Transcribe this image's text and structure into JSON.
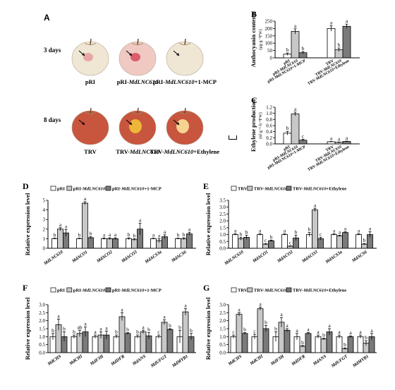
{
  "panel_A": {
    "letter": "A",
    "row1_label": "3 days",
    "row2_label": "8 days",
    "apples_row1": [
      {
        "label_main": "pRI",
        "label_gene": "",
        "label_suffix": ""
      },
      {
        "label_main": "pRI-",
        "label_gene": "MdLNC610",
        "label_suffix": ""
      },
      {
        "label_main": "pRI-",
        "label_gene": "MdLNC610",
        "label_suffix": "+1-MCP"
      }
    ],
    "apples_row2": [
      {
        "label_main": "TRV",
        "label_gene": "",
        "label_suffix": ""
      },
      {
        "label_main": "TRV-",
        "label_gene": "MdLNC610",
        "label_suffix": ""
      },
      {
        "label_main": "TRV-",
        "label_gene": "MdLNC610",
        "label_suffix": "+Ethylene"
      }
    ]
  },
  "colors": {
    "white_bar": "#ffffff",
    "light_gray": "#c8c8c8",
    "dark_gray": "#7a7a7a",
    "skin_red": "#c8553d",
    "skin_pale": "#efe6d4"
  },
  "chart_data": [
    {
      "id": "B",
      "letter": "B",
      "type": "bar",
      "ylabel": "Anthocyanin contents",
      "yunit": "(μg·g⁻¹FW)",
      "yticks": [
        "0",
        "50",
        "100",
        "150",
        "200",
        "250"
      ],
      "ylim": [
        0,
        250
      ],
      "groups": [
        {
          "xlabels": [
            "pRI",
            "pRI-MdLNC610",
            "pRI-MdLNC610+1-MCP"
          ],
          "values": [
            25,
            180,
            35
          ],
          "errors": [
            8,
            18,
            8
          ],
          "letters": [
            "b",
            "a",
            "b"
          ]
        },
        {
          "xlabels": [
            "TRV",
            "TRV-MdLNC610",
            "TRV-MdLNC610+Ethylene"
          ],
          "values": [
            200,
            55,
            215
          ],
          "errors": [
            18,
            12,
            15
          ],
          "letters": [
            "a",
            "b",
            "a"
          ]
        }
      ]
    },
    {
      "id": "C",
      "letter": "C",
      "type": "bar",
      "ylabel": "Ethylene production",
      "yunit": "(nl·g⁻¹·h⁻¹FW)",
      "yticks": [
        "0.0",
        "0.2",
        "0.4",
        "0.6",
        "0.8",
        "1.0",
        "1.2"
      ],
      "ylim": [
        0,
        1.2
      ],
      "groups": [
        {
          "xlabels": [
            "pRI",
            "pRI-MdLNC610",
            "pRI-MdLNC610+1-MCP"
          ],
          "values": [
            0.35,
            0.98,
            0.12
          ],
          "errors": [
            0.06,
            0.06,
            0.03
          ],
          "letters": [
            "b",
            "a",
            "c"
          ]
        },
        {
          "xlabels": [
            "TRV",
            "TRV-MdLNC610",
            "TRV-MdLNC610+Ethylene"
          ],
          "values": [
            0.07,
            0.05,
            0.08
          ],
          "errors": [
            0.01,
            0.01,
            0.01
          ],
          "letters": [
            "a",
            "a",
            "a"
          ]
        }
      ]
    },
    {
      "id": "D",
      "letter": "D",
      "type": "bar",
      "ylabel": "Relative expression level",
      "legend": [
        "pRI",
        "pRI-MdLNC610",
        "pRI-MdLNC610+1-MCP"
      ],
      "yticks": [
        "0",
        "1",
        "2",
        "3",
        "4",
        "5"
      ],
      "ylim": [
        0,
        5
      ],
      "categories": [
        "MdLNC610",
        "MdACO1",
        "MdACO2",
        "MdACO3",
        "MdACS3a",
        "MdACS6"
      ],
      "series": [
        {
          "name": "pRI",
          "values": [
            1.0,
            1.0,
            1.0,
            1.0,
            1.0,
            1.0
          ],
          "errors": [
            0.05,
            0.05,
            0.08,
            0.1,
            0.05,
            0.05
          ],
          "letters": [
            "b",
            "b",
            "a",
            "b",
            "a",
            "b"
          ]
        },
        {
          "name": "pRI-MdLNC610",
          "values": [
            2.0,
            4.7,
            1.0,
            0.9,
            0.8,
            1.0
          ],
          "errors": [
            0.15,
            0.15,
            0.1,
            0.1,
            0.2,
            0.1
          ],
          "letters": [
            "a",
            "a",
            "a",
            "b",
            "a",
            "b"
          ]
        },
        {
          "name": "pRI-MdLNC610+1-MCP",
          "values": [
            1.6,
            1.1,
            1.0,
            2.0,
            1.2,
            1.5
          ],
          "errors": [
            0.35,
            0.1,
            0.1,
            0.6,
            0.2,
            0.15
          ],
          "letters": [
            "a",
            "b",
            "a",
            "a",
            "a",
            "a"
          ]
        }
      ]
    },
    {
      "id": "E",
      "letter": "E",
      "type": "bar",
      "ylabel": "Relative expression level",
      "legend": [
        "TRV",
        "TRV-MdLNC610",
        "TRV-MdLNC610+Ethylene"
      ],
      "yticks": [
        "0.0",
        "0.5",
        "1.0",
        "1.5",
        "2.0",
        "2.5",
        "3.0",
        "3.5"
      ],
      "ylim": [
        0,
        3.5
      ],
      "categories": [
        "MdLNC610",
        "MdACO1",
        "MdACO2",
        "MdACO3",
        "MdACS3a",
        "MdACS6"
      ],
      "series": [
        {
          "name": "TRV",
          "values": [
            1.0,
            1.0,
            1.0,
            1.0,
            1.0,
            1.0
          ],
          "errors": [
            0.05,
            0.05,
            0.05,
            0.15,
            0.05,
            0.05
          ],
          "letters": [
            "a",
            "a",
            "a",
            "b",
            "a",
            "a"
          ]
        },
        {
          "name": "TRV-MdLNC610",
          "values": [
            0.7,
            0.3,
            0.15,
            2.8,
            0.9,
            0.3
          ],
          "errors": [
            0.1,
            0.05,
            0.03,
            0.12,
            0.05,
            0.05
          ],
          "letters": [
            "b",
            "c",
            "c",
            "a",
            "a",
            "b"
          ]
        },
        {
          "name": "TRV-MdLNC610+Ethylene",
          "values": [
            0.8,
            0.55,
            0.75,
            0.7,
            1.15,
            1.0
          ],
          "errors": [
            0.15,
            0.05,
            0.2,
            0.1,
            0.05,
            0.2
          ],
          "letters": [
            "b",
            "b",
            "b",
            "c",
            "a",
            "a"
          ]
        }
      ]
    },
    {
      "id": "F",
      "letter": "F",
      "type": "bar",
      "ylabel": "Relative expression level",
      "legend": [
        "pRI",
        "pRI-MdLNC610",
        "pRI-MdLNC610+1-MCP"
      ],
      "yticks": [
        "0.0",
        "0.5",
        "1.0",
        "1.5",
        "2.0",
        "2.5",
        "3.0"
      ],
      "ylim": [
        0,
        3
      ],
      "categories": [
        "MdCHS",
        "MdCHI",
        "MdF3H",
        "MdDFR",
        "MdANS",
        "MdUFGT",
        "MdMYB1"
      ],
      "series": [
        {
          "name": "pRI",
          "values": [
            1.0,
            1.0,
            1.0,
            1.0,
            1.0,
            1.0,
            1.0
          ],
          "errors": [
            0.2,
            0.1,
            0.1,
            0.1,
            0.1,
            0.1,
            0.4
          ],
          "letters": [
            "b",
            "b",
            "a",
            "b",
            "b",
            "c",
            "b"
          ]
        },
        {
          "name": "pRI-MdLNC610",
          "values": [
            1.75,
            1.2,
            1.1,
            2.25,
            1.3,
            1.9,
            2.55
          ],
          "errors": [
            0.35,
            0.2,
            0.2,
            0.25,
            0.1,
            0.15,
            0.2
          ],
          "letters": [
            "a",
            "ab",
            "a",
            "a",
            "a",
            "a",
            "a"
          ]
        },
        {
          "name": "pRI-MdLNC610+1-MCP",
          "values": [
            1.0,
            1.3,
            1.1,
            1.2,
            1.05,
            1.45,
            1.0
          ],
          "errors": [
            0.3,
            0.3,
            0.25,
            0.05,
            0.2,
            0.05,
            0.2
          ],
          "letters": [
            "b",
            "a",
            "a",
            "b",
            "b",
            "b",
            "b"
          ]
        }
      ]
    },
    {
      "id": "G",
      "letter": "G",
      "type": "bar",
      "ylabel": "Relative expression level",
      "legend": [
        "TRV",
        "TRV-MdLNC610",
        "TRV-MdLNC610+Ethylene"
      ],
      "yticks": [
        "0.0",
        "0.5",
        "1.0",
        "1.5",
        "2.0",
        "2.5",
        "3.0"
      ],
      "ylim": [
        0,
        3
      ],
      "categories": [
        "MdCHS",
        "MdCHI",
        "MdF3H",
        "MdDFR",
        "MdANS",
        "MdUFGT",
        "MdMYB1"
      ],
      "series": [
        {
          "name": "TRV",
          "values": [
            1.0,
            1.0,
            1.0,
            1.0,
            1.0,
            1.0,
            1.0
          ],
          "errors": [
            0.1,
            0.15,
            0.3,
            0.2,
            0.1,
            0.1,
            0.1
          ],
          "letters": [
            "c",
            "c",
            "b",
            "a",
            "a",
            "a",
            "a"
          ]
        },
        {
          "name": "TRV-MdLNC610",
          "values": [
            2.4,
            2.75,
            1.9,
            0.4,
            0.85,
            0.25,
            0.6
          ],
          "errors": [
            0.1,
            0.1,
            0.3,
            0.05,
            0.05,
            0.05,
            0.15
          ],
          "letters": [
            "a",
            "a",
            "a",
            "b",
            "b",
            "b",
            "b"
          ]
        },
        {
          "name": "TRV-MdLNC610+Ethylene",
          "values": [
            1.2,
            1.5,
            1.4,
            1.2,
            1.3,
            1.0,
            1.0
          ],
          "errors": [
            0.05,
            0.2,
            0.1,
            0.05,
            0.2,
            0.05,
            0.2
          ],
          "letters": [
            "b",
            "b",
            "a",
            "a",
            "a",
            "a",
            "a"
          ]
        }
      ]
    }
  ]
}
